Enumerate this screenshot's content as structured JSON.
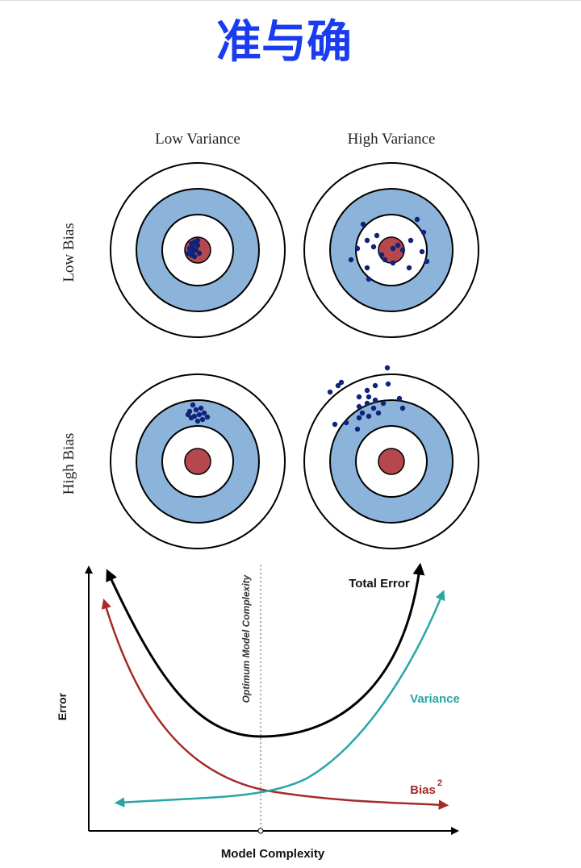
{
  "title": "准与确",
  "targets": {
    "columns": [
      "Low Variance",
      "High Variance"
    ],
    "rows": [
      "Low Bias",
      "High Bias"
    ]
  },
  "tradeoff": {
    "optimum_label": "Optimum Model Complexity",
    "total_error_label": "Total Error",
    "variance_label": "Variance",
    "bias_label": "Bias",
    "bias_exponent": "2",
    "y_axis_label": "Error",
    "x_axis_label": "Model Complexity"
  }
}
